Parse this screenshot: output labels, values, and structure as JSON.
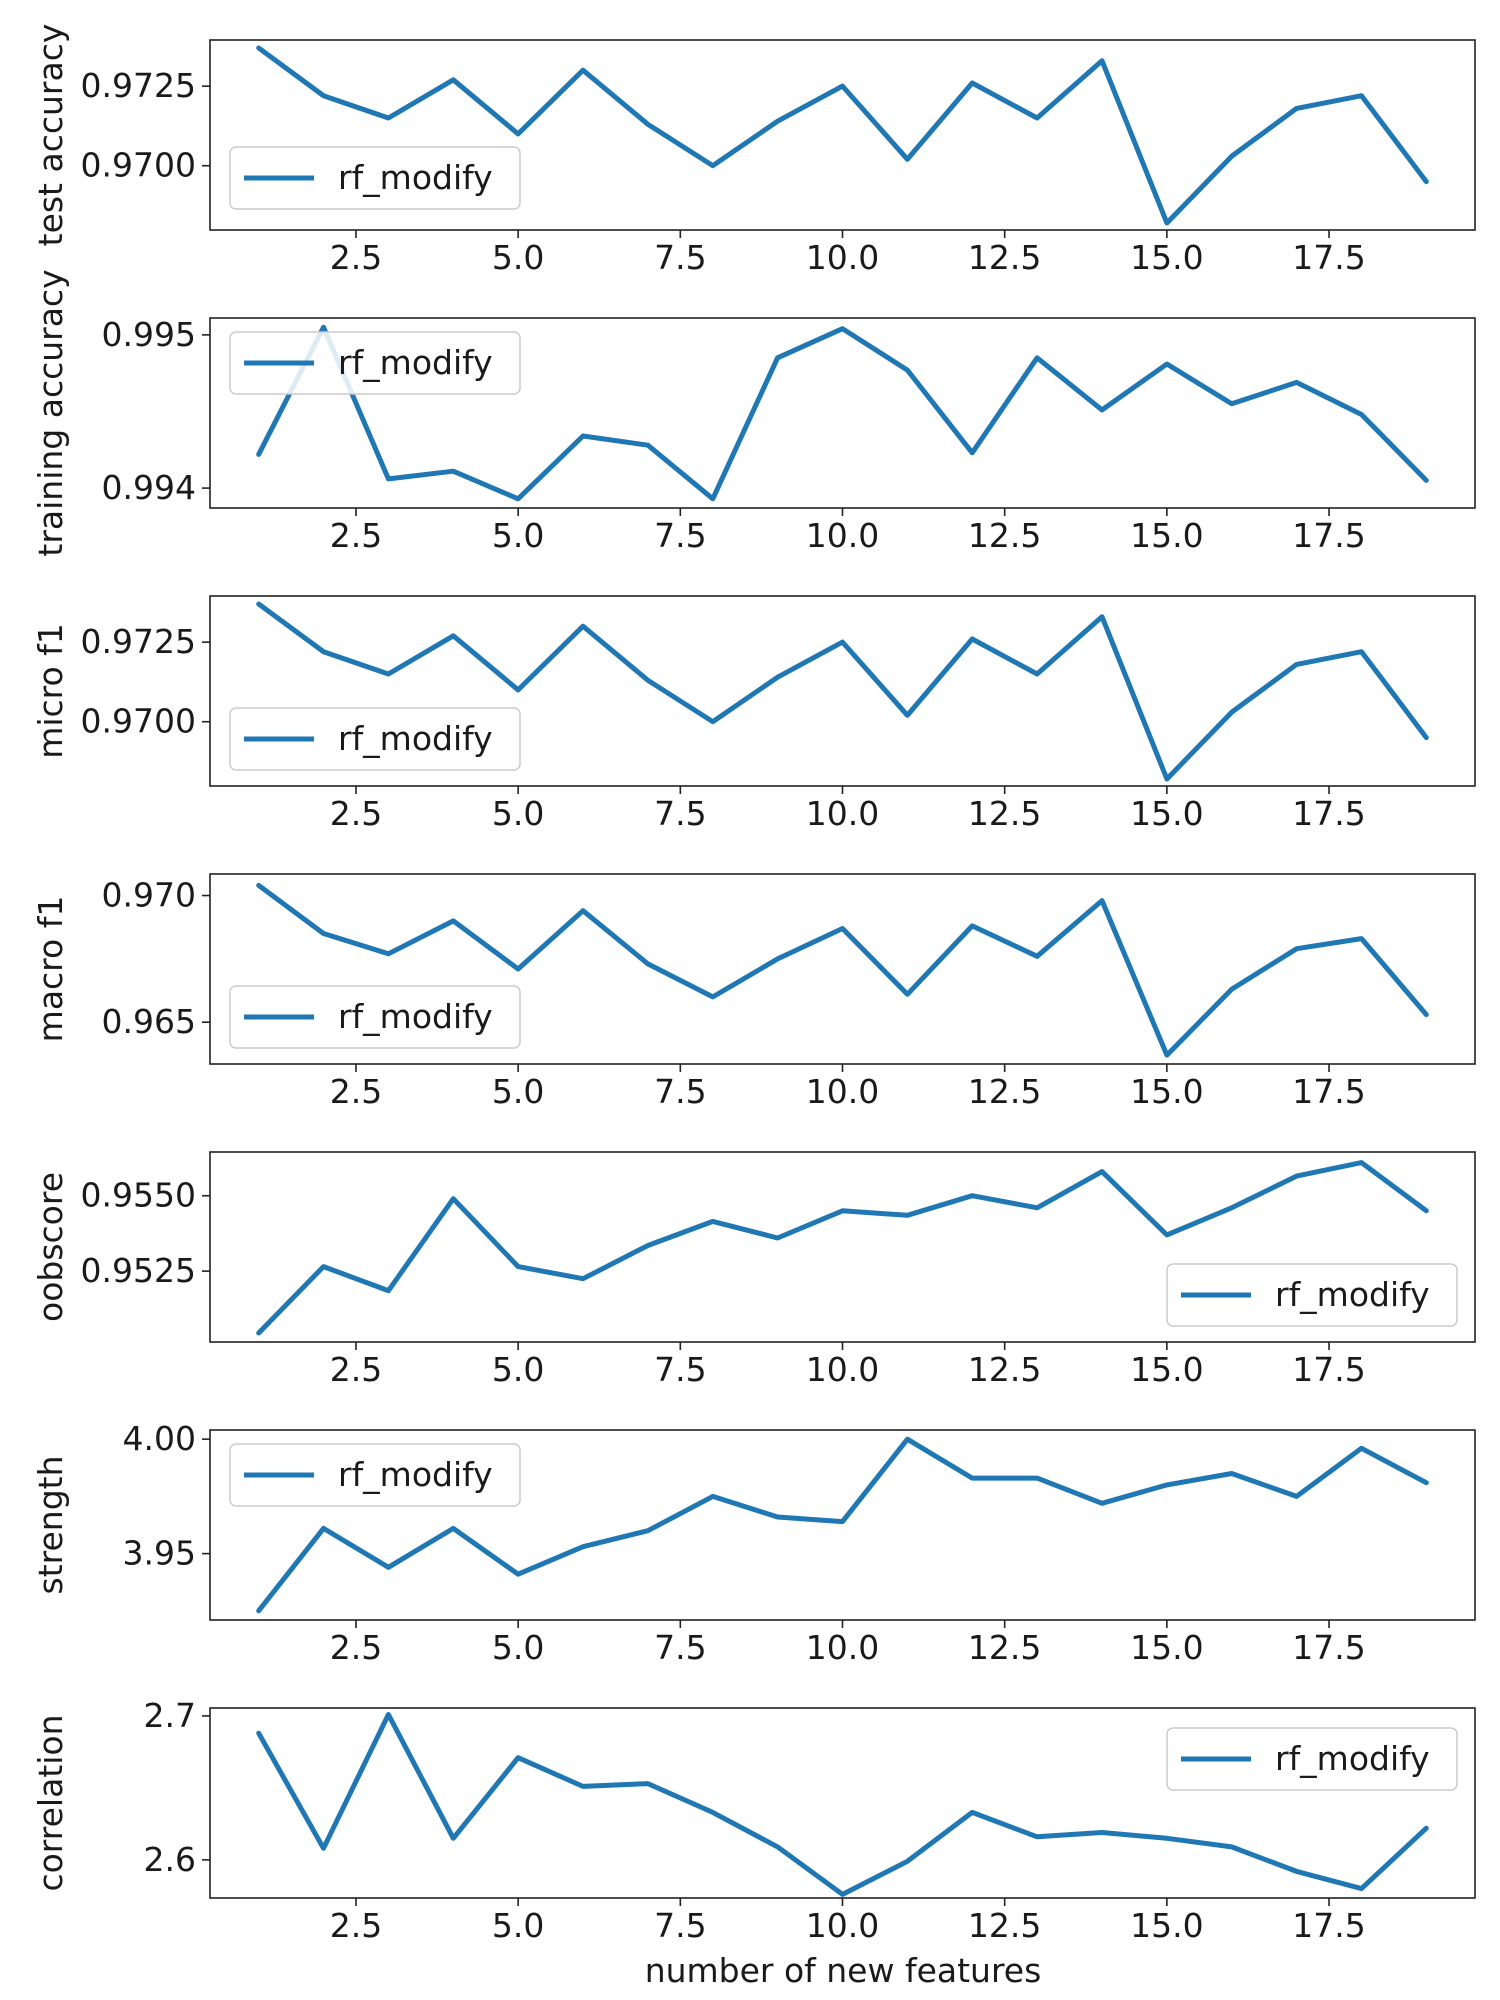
{
  "figure": {
    "xlabel": "number of new features",
    "background": "#ffffff",
    "line_color": "#1f77b4"
  },
  "chart_data": [
    {
      "type": "line",
      "ylabel": "test accuracy",
      "legend_position": "center-left",
      "series": [
        {
          "name": "rf_modify",
          "x": [
            1,
            2,
            3,
            4,
            5,
            6,
            7,
            8,
            9,
            10,
            11,
            12,
            13,
            14,
            15,
            16,
            17,
            18,
            19
          ],
          "y": [
            0.9737,
            0.9722,
            0.9715,
            0.9727,
            0.971,
            0.973,
            0.9713,
            0.97,
            0.9714,
            0.9725,
            0.9702,
            0.9726,
            0.9715,
            0.9733,
            0.9682,
            0.9703,
            0.9718,
            0.9722,
            0.9695
          ]
        }
      ],
      "xlim": [
        0.25,
        19.75
      ],
      "ylim": [
        0.96798,
        0.97395
      ],
      "xticks": [
        "2.5",
        "5.0",
        "7.5",
        "10.0",
        "12.5",
        "15.0",
        "17.5"
      ],
      "xtick_values": [
        2.5,
        5,
        7.5,
        10,
        12.5,
        15,
        17.5
      ],
      "yticks": [
        "0.9700",
        "0.9725"
      ],
      "ytick_values": [
        0.97,
        0.9725
      ]
    },
    {
      "type": "line",
      "ylabel": "training accuracy",
      "legend_position": "upper-left",
      "series": [
        {
          "name": "rf_modify",
          "x": [
            1,
            2,
            3,
            4,
            5,
            6,
            7,
            8,
            9,
            10,
            11,
            12,
            13,
            14,
            15,
            16,
            17,
            18,
            19
          ],
          "y": [
            0.99422,
            0.99505,
            0.99406,
            0.99411,
            0.99393,
            0.99434,
            0.99428,
            0.99393,
            0.99485,
            0.99504,
            0.99477,
            0.99423,
            0.99485,
            0.99451,
            0.99481,
            0.99455,
            0.99469,
            0.99448,
            0.99405
          ]
        }
      ],
      "xlim": [
        0.25,
        19.75
      ],
      "ylim": [
        0.99387,
        0.99511
      ],
      "xticks": [
        "2.5",
        "5.0",
        "7.5",
        "10.0",
        "12.5",
        "15.0",
        "17.5"
      ],
      "xtick_values": [
        2.5,
        5,
        7.5,
        10,
        12.5,
        15,
        17.5
      ],
      "yticks": [
        "0.994",
        "0.995"
      ],
      "ytick_values": [
        0.994,
        0.995
      ]
    },
    {
      "type": "line",
      "ylabel": "micro f1",
      "legend_position": "lower-left",
      "series": [
        {
          "name": "rf_modify",
          "x": [
            1,
            2,
            3,
            4,
            5,
            6,
            7,
            8,
            9,
            10,
            11,
            12,
            13,
            14,
            15,
            16,
            17,
            18,
            19
          ],
          "y": [
            0.9737,
            0.9722,
            0.9715,
            0.9727,
            0.971,
            0.973,
            0.9713,
            0.97,
            0.9714,
            0.9725,
            0.9702,
            0.9726,
            0.9715,
            0.9733,
            0.9682,
            0.9703,
            0.9718,
            0.9722,
            0.9695
          ]
        }
      ],
      "xlim": [
        0.25,
        19.75
      ],
      "ylim": [
        0.96798,
        0.97395
      ],
      "xticks": [
        "2.5",
        "5.0",
        "7.5",
        "10.0",
        "12.5",
        "15.0",
        "17.5"
      ],
      "xtick_values": [
        2.5,
        5,
        7.5,
        10,
        12.5,
        15,
        17.5
      ],
      "yticks": [
        "0.9700",
        "0.9725"
      ],
      "ytick_values": [
        0.97,
        0.9725
      ]
    },
    {
      "type": "line",
      "ylabel": "macro f1",
      "legend_position": "lower-left",
      "series": [
        {
          "name": "rf_modify",
          "x": [
            1,
            2,
            3,
            4,
            5,
            6,
            7,
            8,
            9,
            10,
            11,
            12,
            13,
            14,
            15,
            16,
            17,
            18,
            19
          ],
          "y": [
            0.9704,
            0.9685,
            0.9677,
            0.969,
            0.9671,
            0.9694,
            0.9673,
            0.966,
            0.9675,
            0.9687,
            0.9661,
            0.9688,
            0.9676,
            0.9698,
            0.9637,
            0.9663,
            0.9679,
            0.9683,
            0.9653
          ]
        }
      ],
      "xlim": [
        0.25,
        19.75
      ],
      "ylim": [
        0.96335,
        0.97085
      ],
      "xticks": [
        "2.5",
        "5.0",
        "7.5",
        "10.0",
        "12.5",
        "15.0",
        "17.5"
      ],
      "xtick_values": [
        2.5,
        5,
        7.5,
        10,
        12.5,
        15,
        17.5
      ],
      "yticks": [
        "0.965",
        "0.970"
      ],
      "ytick_values": [
        0.965,
        0.97
      ]
    },
    {
      "type": "line",
      "ylabel": "oobscore",
      "legend_position": "lower-right",
      "series": [
        {
          "name": "rf_modify",
          "x": [
            1,
            2,
            3,
            4,
            5,
            6,
            7,
            8,
            9,
            10,
            11,
            12,
            13,
            14,
            15,
            16,
            17,
            18,
            19
          ],
          "y": [
            0.95045,
            0.95265,
            0.95185,
            0.9549,
            0.95265,
            0.95225,
            0.95335,
            0.95415,
            0.9536,
            0.9545,
            0.95435,
            0.955,
            0.9546,
            0.9558,
            0.9537,
            0.9546,
            0.95565,
            0.9561,
            0.9545
          ]
        }
      ],
      "xlim": [
        0.25,
        19.75
      ],
      "ylim": [
        0.95015,
        0.95645
      ],
      "xticks": [
        "2.5",
        "5.0",
        "7.5",
        "10.0",
        "12.5",
        "15.0",
        "17.5"
      ],
      "xtick_values": [
        2.5,
        5,
        7.5,
        10,
        12.5,
        15,
        17.5
      ],
      "yticks": [
        "0.9525",
        "0.9550"
      ],
      "ytick_values": [
        0.9525,
        0.955
      ]
    },
    {
      "type": "line",
      "ylabel": "strength",
      "legend_position": "upper-left",
      "series": [
        {
          "name": "rf_modify",
          "x": [
            1,
            2,
            3,
            4,
            5,
            6,
            7,
            8,
            9,
            10,
            11,
            12,
            13,
            14,
            15,
            16,
            17,
            18,
            19
          ],
          "y": [
            3.925,
            3.961,
            3.944,
            3.961,
            3.941,
            3.953,
            3.96,
            3.975,
            3.966,
            3.964,
            4.0,
            3.983,
            3.983,
            3.972,
            3.98,
            3.985,
            3.975,
            3.996,
            3.981
          ]
        }
      ],
      "xlim": [
        0.25,
        19.75
      ],
      "ylim": [
        3.921,
        4.004
      ],
      "xticks": [
        "2.5",
        "5.0",
        "7.5",
        "10.0",
        "12.5",
        "15.0",
        "17.5"
      ],
      "xtick_values": [
        2.5,
        5,
        7.5,
        10,
        12.5,
        15,
        17.5
      ],
      "yticks": [
        "3.95",
        "4.00"
      ],
      "ytick_values": [
        3.95,
        4.0
      ]
    },
    {
      "type": "line",
      "ylabel": "correlation",
      "legend_position": "upper-right",
      "series": [
        {
          "name": "rf_modify",
          "x": [
            1,
            2,
            3,
            4,
            5,
            6,
            7,
            8,
            9,
            10,
            11,
            12,
            13,
            14,
            15,
            16,
            17,
            18,
            19
          ],
          "y": [
            2.688,
            2.608,
            2.701,
            2.615,
            2.671,
            2.651,
            2.653,
            2.633,
            2.609,
            2.576,
            2.599,
            2.633,
            2.616,
            2.619,
            2.615,
            2.609,
            2.592,
            2.58,
            2.622
          ]
        }
      ],
      "xlim": [
        0.25,
        19.75
      ],
      "ylim": [
        2.5735,
        2.7055
      ],
      "xticks": [
        "2.5",
        "5.0",
        "7.5",
        "10.0",
        "12.5",
        "15.0",
        "17.5"
      ],
      "xtick_values": [
        2.5,
        5,
        7.5,
        10,
        12.5,
        15,
        17.5
      ],
      "yticks": [
        "2.6",
        "2.7"
      ],
      "ytick_values": [
        2.6,
        2.7
      ]
    }
  ]
}
